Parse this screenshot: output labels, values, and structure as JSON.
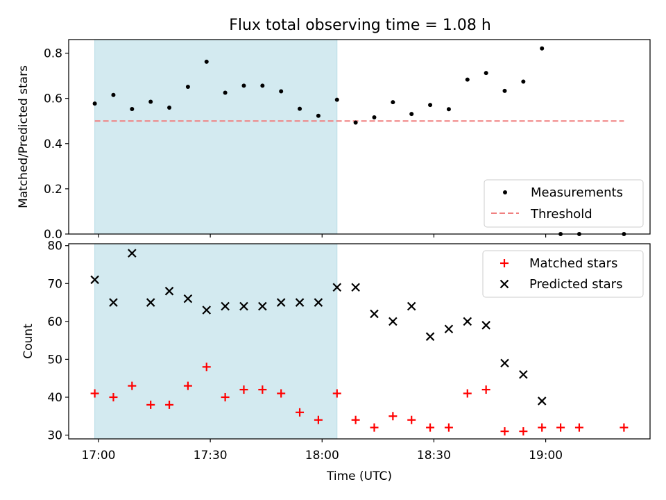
{
  "chart_data": [
    {
      "type": "scatter",
      "title": "Flux total observing time = 1.08 h",
      "xlabel": "",
      "ylabel": "Matched/Predicted stars",
      "ylim": [
        0,
        0.86
      ],
      "yticks": [
        "0.0",
        "0.2",
        "0.4",
        "0.6",
        "0.8"
      ],
      "ytick_values": [
        0,
        0.2,
        0.4,
        0.6,
        0.8
      ],
      "shaded_region": {
        "x_start": "16:59",
        "x_end": "18:04",
        "color": "#d3eaf0"
      },
      "threshold": {
        "name": "Threshold",
        "value": 0.5,
        "x_start": "16:59",
        "x_end": "19:21",
        "color": "#f08080"
      },
      "series": [
        {
          "name": "Measurements",
          "color": "#000000",
          "x": [
            "16:59",
            "17:04",
            "17:09",
            "17:14",
            "17:19",
            "17:24",
            "17:29",
            "17:34",
            "17:39",
            "17:44",
            "17:49",
            "17:54",
            "17:59",
            "18:04",
            "18:09",
            "18:14",
            "18:19",
            "18:24",
            "18:29",
            "18:34",
            "18:39",
            "18:44",
            "18:49",
            "18:54",
            "18:59",
            "19:04",
            "19:09",
            "19:21"
          ],
          "values": [
            0.577,
            0.615,
            0.553,
            0.585,
            0.559,
            0.651,
            0.762,
            0.625,
            0.656,
            0.656,
            0.631,
            0.554,
            0.523,
            0.594,
            0.493,
            0.516,
            0.583,
            0.531,
            0.571,
            0.552,
            0.683,
            0.712,
            0.633,
            0.674,
            0.821,
            0.0,
            0.0,
            0.0
          ]
        }
      ],
      "legend": {
        "placement": "lower-right",
        "entries": [
          "Measurements",
          "Threshold"
        ]
      }
    },
    {
      "type": "scatter",
      "title": "",
      "xlabel": "Time (UTC)",
      "ylabel": "Count",
      "ylim": [
        29,
        80.5
      ],
      "yticks": [
        "30",
        "40",
        "50",
        "60",
        "70",
        "80"
      ],
      "ytick_values": [
        30,
        40,
        50,
        60,
        70,
        80
      ],
      "xticks": [
        "17:00",
        "17:30",
        "18:00",
        "18:30",
        "19:00"
      ],
      "xtick_values": [
        "17:00",
        "17:30",
        "18:00",
        "18:30",
        "19:00"
      ],
      "xlim": [
        "16:52",
        "19:28"
      ],
      "shaded_region": {
        "x_start": "16:59",
        "x_end": "18:04",
        "color": "#d3eaf0"
      },
      "series": [
        {
          "name": "Matched stars",
          "marker": "plus",
          "color": "#ff0000",
          "x": [
            "16:59",
            "17:04",
            "17:09",
            "17:14",
            "17:19",
            "17:24",
            "17:29",
            "17:34",
            "17:39",
            "17:44",
            "17:49",
            "17:54",
            "17:59",
            "18:04",
            "18:09",
            "18:14",
            "18:19",
            "18:24",
            "18:29",
            "18:34",
            "18:39",
            "18:44",
            "18:49",
            "18:54",
            "18:59",
            "19:04",
            "19:09",
            "19:21"
          ],
          "values": [
            41,
            40,
            43,
            38,
            38,
            43,
            48,
            40,
            42,
            42,
            41,
            36,
            34,
            41,
            34,
            32,
            35,
            34,
            32,
            32,
            41,
            42,
            31,
            31,
            32,
            32,
            32,
            32
          ]
        },
        {
          "name": "Predicted stars",
          "marker": "x",
          "color": "#000000",
          "x": [
            "16:59",
            "17:04",
            "17:09",
            "17:14",
            "17:19",
            "17:24",
            "17:29",
            "17:34",
            "17:39",
            "17:44",
            "17:49",
            "17:54",
            "17:59",
            "18:04",
            "18:09",
            "18:14",
            "18:19",
            "18:24",
            "18:29",
            "18:34",
            "18:39",
            "18:44",
            "18:49",
            "18:54",
            "18:59"
          ],
          "values": [
            71,
            65,
            78,
            65,
            68,
            66,
            63,
            64,
            64,
            64,
            65,
            65,
            65,
            69,
            69,
            62,
            60,
            64,
            56,
            58,
            60,
            59,
            49,
            46,
            39
          ]
        }
      ],
      "legend": {
        "placement": "upper-right",
        "entries": [
          "Matched stars",
          "Predicted stars"
        ]
      }
    }
  ]
}
